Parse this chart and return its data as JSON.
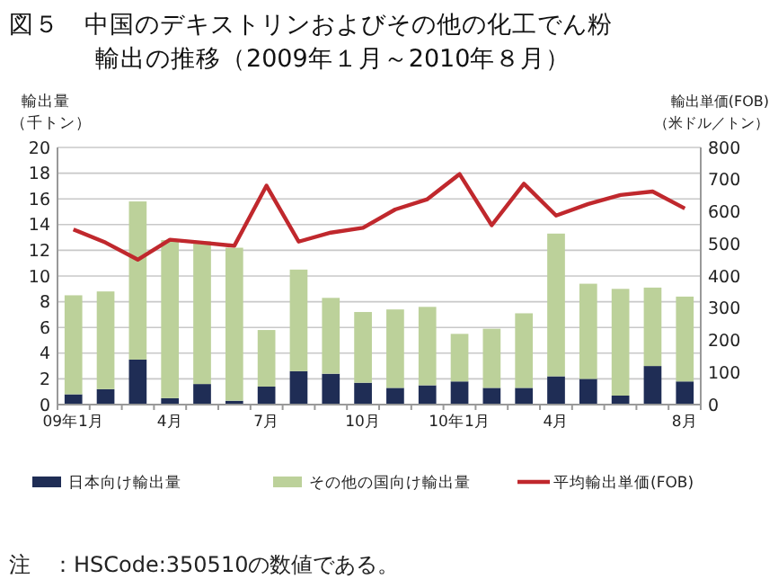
{
  "chart_data": {
    "type": "bar",
    "title": "図５　中国のデキストリンおよびその他の化工でん粉輸出の推移（2009年１月～2010年８月）",
    "ylabel": "輸出量（千トン）",
    "y2label": "輸出単価(FOB)（米ドル／トン）",
    "annotations": [
      "注　：HSCode:350510の数値である。"
    ],
    "categories": [
      "09年1月",
      null,
      null,
      "4月",
      null,
      null,
      "7月",
      null,
      null,
      "10月",
      null,
      null,
      "10年1月",
      null,
      null,
      "4月",
      null,
      null,
      null,
      "8月"
    ],
    "stacked": true,
    "series": [
      {
        "name": "日本向け輸出量",
        "color": "#1f2d55",
        "values": [
          0.8,
          1.2,
          3.5,
          0.5,
          1.6,
          0.3,
          1.4,
          2.6,
          2.4,
          1.7,
          1.3,
          1.5,
          1.8,
          1.3,
          1.3,
          2.2,
          2.0,
          0.7,
          3.0,
          1.8
        ]
      },
      {
        "name": "その他の国向け輸出量",
        "color": "#bcd19a",
        "values": [
          7.7,
          7.6,
          12.3,
          12.3,
          11.1,
          11.9,
          4.4,
          7.9,
          5.9,
          5.5,
          6.1,
          6.1,
          3.7,
          4.6,
          5.8,
          11.1,
          7.4,
          8.3,
          6.1,
          6.6
        ]
      },
      {
        "name": "平均輸出単価(FOB)",
        "type": "line",
        "axis": "y2",
        "color": "#c0282d",
        "values": [
          545,
          504,
          451,
          513,
          504,
          494,
          681,
          507,
          535,
          550,
          607,
          639,
          717,
          558,
          687,
          588,
          624,
          652,
          663,
          610
        ]
      }
    ],
    "ylim": [
      0,
      20
    ],
    "yticks": [
      0,
      2,
      4,
      6,
      8,
      10,
      12,
      14,
      16,
      18,
      20
    ],
    "y2lim": [
      0,
      800
    ],
    "y2ticks": [
      0,
      100,
      200,
      300,
      400,
      500,
      600,
      700,
      800
    ],
    "grid": "y",
    "legend": "bottom",
    "marker": "none",
    "line_style": "solid"
  }
}
